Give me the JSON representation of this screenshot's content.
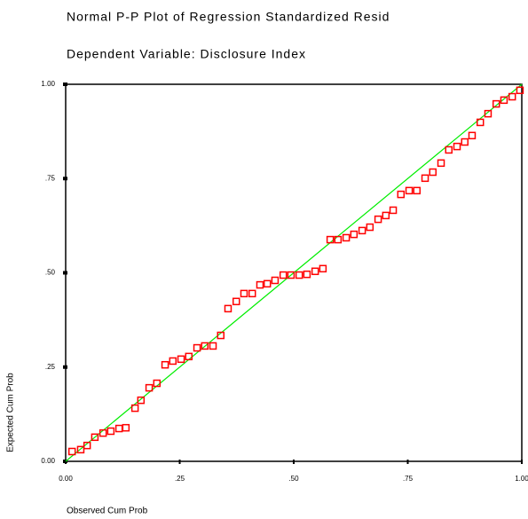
{
  "chart_data": {
    "type": "scatter",
    "title": "Normal P-P Plot of Regression Standardized Resid",
    "subtitle": "Dependent Variable: Disclosure Index",
    "x_label": "Observed Cum Prob",
    "y_label": "Expected Cum Prob",
    "color": "#ff0000",
    "reference_line_color": "#00ee00",
    "xlim": [
      0,
      1
    ],
    "ylim": [
      0,
      1
    ],
    "xticks": [
      {
        "value": 0,
        "label": "0.00"
      },
      {
        "value": 0.25,
        "label": ".25"
      },
      {
        "value": 0.5,
        "label": ".50"
      },
      {
        "value": 0.75,
        "label": ".75"
      },
      {
        "value": 1,
        "label": "1.00"
      }
    ],
    "yticks": [
      {
        "value": 0,
        "label": "0.00"
      },
      {
        "value": 0.25,
        "label": ".25"
      },
      {
        "value": 0.5,
        "label": ".50"
      },
      {
        "value": 0.75,
        "label": ".75"
      },
      {
        "value": 1,
        "label": "1.00"
      }
    ],
    "x": [
      0.014,
      0.033,
      0.047,
      0.064,
      0.082,
      0.099,
      0.117,
      0.132,
      0.152,
      0.165,
      0.183,
      0.2,
      0.218,
      0.235,
      0.253,
      0.27,
      0.288,
      0.305,
      0.323,
      0.34,
      0.356,
      0.374,
      0.391,
      0.409,
      0.426,
      0.442,
      0.459,
      0.477,
      0.494,
      0.512,
      0.529,
      0.547,
      0.564,
      0.58,
      0.597,
      0.615,
      0.632,
      0.65,
      0.667,
      0.685,
      0.702,
      0.718,
      0.735,
      0.753,
      0.77,
      0.788,
      0.805,
      0.823,
      0.84,
      0.858,
      0.875,
      0.891,
      0.909,
      0.926,
      0.944,
      0.961,
      0.979,
      0.996
    ],
    "values": [
      0.026,
      0.031,
      0.042,
      0.064,
      0.075,
      0.08,
      0.087,
      0.089,
      0.141,
      0.162,
      0.195,
      0.207,
      0.256,
      0.266,
      0.271,
      0.278,
      0.301,
      0.306,
      0.306,
      0.334,
      0.405,
      0.424,
      0.445,
      0.445,
      0.468,
      0.471,
      0.48,
      0.494,
      0.494,
      0.494,
      0.496,
      0.504,
      0.511,
      0.588,
      0.588,
      0.593,
      0.602,
      0.612,
      0.621,
      0.642,
      0.652,
      0.666,
      0.708,
      0.718,
      0.718,
      0.751,
      0.767,
      0.791,
      0.826,
      0.835,
      0.847,
      0.864,
      0.899,
      0.922,
      0.948,
      0.958,
      0.967,
      0.984
    ]
  }
}
